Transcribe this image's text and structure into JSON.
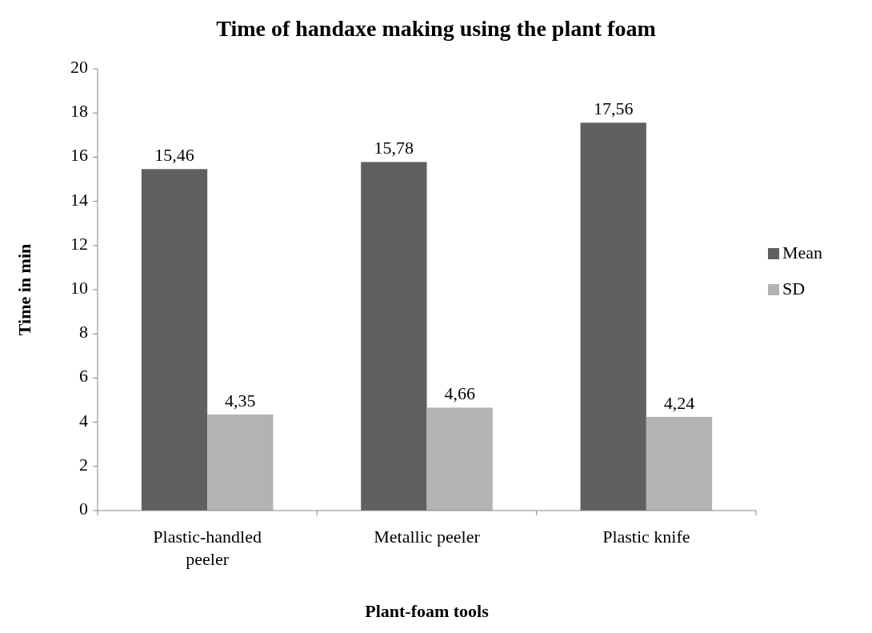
{
  "chart_data": {
    "type": "bar",
    "title": "Time of handaxe making using the plant foam",
    "xlabel": "Plant-foam tools",
    "ylabel": "Time in min",
    "categories": [
      "Plastic-handled peeler",
      "Metallic peeler",
      "Plastic knife"
    ],
    "series": [
      {
        "name": "Mean",
        "color": "#606060",
        "values": [
          15.46,
          15.78,
          17.56
        ],
        "value_labels": [
          "15,46",
          "15,78",
          "17,56"
        ]
      },
      {
        "name": "SD",
        "color": "#b3b3b3",
        "values": [
          4.35,
          4.66,
          4.24
        ],
        "value_labels": [
          "4,35",
          "4,66",
          "4,24"
        ]
      }
    ],
    "ylim": [
      0,
      20
    ],
    "yticks": [
      0,
      2,
      4,
      6,
      8,
      10,
      12,
      14,
      16,
      18,
      20
    ],
    "grid": false,
    "legend": "right"
  }
}
